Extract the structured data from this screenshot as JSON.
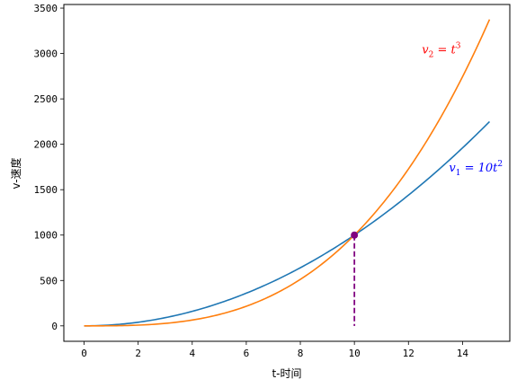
{
  "chart_data": {
    "type": "line",
    "xlabel": "t-时间",
    "ylabel": "v-速度",
    "xlim": [
      -0.75,
      15.75
    ],
    "ylim": [
      -170,
      3540
    ],
    "xticks": [
      0,
      2,
      4,
      6,
      8,
      10,
      12,
      14
    ],
    "yticks": [
      0,
      500,
      1000,
      1500,
      2000,
      2500,
      3000,
      3500
    ],
    "grid": false,
    "series": [
      {
        "formula": "v=10t^2",
        "color": "#1f77b4",
        "x": [
          0,
          1,
          2,
          3,
          4,
          5,
          6,
          7,
          8,
          9,
          10,
          11,
          12,
          13,
          14,
          15
        ],
        "values": [
          0,
          10,
          40,
          90,
          160,
          250,
          360,
          490,
          640,
          810,
          1000,
          1210,
          1440,
          1690,
          1960,
          2250
        ]
      },
      {
        "formula": "v=t^3",
        "color": "#ff7f0e",
        "x": [
          0,
          1,
          2,
          3,
          4,
          5,
          6,
          7,
          8,
          9,
          10,
          11,
          12,
          13,
          14,
          15
        ],
        "values": [
          0,
          1,
          8,
          27,
          64,
          125,
          216,
          343,
          512,
          729,
          1000,
          1331,
          1728,
          2197,
          2744,
          3375
        ]
      }
    ],
    "annotations": [
      {
        "sub": "2",
        "sup": "3",
        "pre": "= t",
        "x": 12.5,
        "y": 3000,
        "color": "#ff0000"
      },
      {
        "sub": "1",
        "sup": "2",
        "pre": "= 10t",
        "x": 13.5,
        "y": 1700,
        "color": "#0000ff"
      }
    ],
    "intersection": {
      "x": 10,
      "y": 1000,
      "color": "#800080"
    }
  }
}
